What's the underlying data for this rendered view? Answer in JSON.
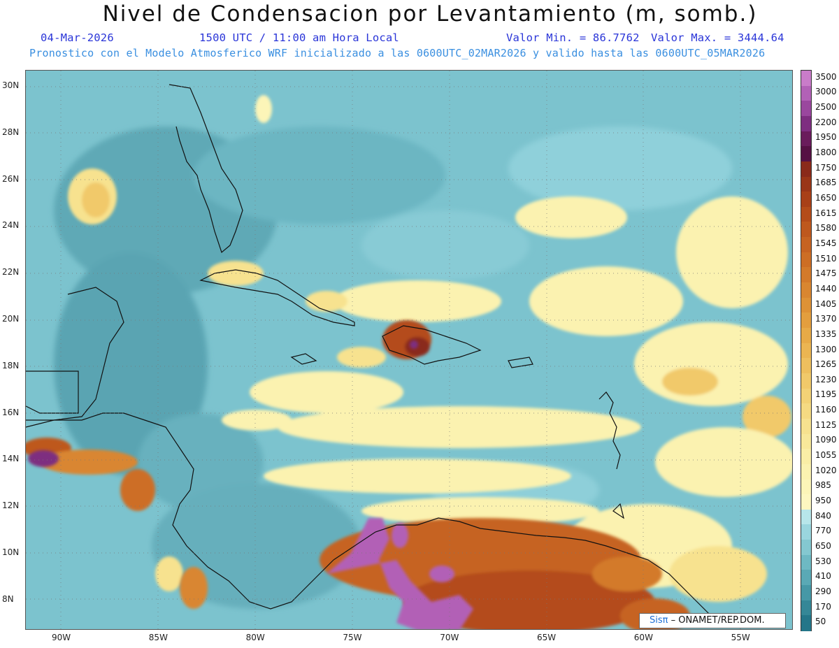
{
  "title": "Nivel de Condensacion por Levantamiento (m, somb.)",
  "date": "04-Mar-2026",
  "time": "1500 UTC / 11:00 am Hora Local",
  "valmin": "Valor Min. = 86.7762",
  "valmax": "Valor Max. = 3444.64",
  "forecast": "Pronostico con el Modelo Atmosferico WRF inicializado a las 0600UTC_02MAR2026 y valido hasta las  0600UTC_05MAR2026",
  "credit_logo": "Sisπ",
  "credit_text": "– ONAMET/REP.DOM.",
  "lat_labels": [
    "30N",
    "28N",
    "26N",
    "24N",
    "22N",
    "20N",
    "18N",
    "16N",
    "14N",
    "12N",
    "10N",
    "8N"
  ],
  "lon_labels": [
    "90W",
    "85W",
    "80W",
    "75W",
    "70W",
    "65W",
    "60W",
    "55W"
  ],
  "colorbar": {
    "labels": [
      "3500",
      "3000",
      "2500",
      "2200",
      "1950",
      "1800",
      "1750",
      "1685",
      "1650",
      "1615",
      "1580",
      "1545",
      "1510",
      "1475",
      "1440",
      "1405",
      "1370",
      "1335",
      "1300",
      "1265",
      "1230",
      "1195",
      "1160",
      "1125",
      "1090",
      "1055",
      "1020",
      "985",
      "950",
      "840",
      "770",
      "650",
      "530",
      "410",
      "290",
      "170",
      "50"
    ],
    "colors": [
      "#c97cc9",
      "#b261b6",
      "#9a479e",
      "#7e2e80",
      "#6a1c5c",
      "#561144",
      "#8a2a1a",
      "#9a3618",
      "#a84018",
      "#b44c1a",
      "#be581e",
      "#c66322",
      "#cd6e25",
      "#d37a2a",
      "#d98630",
      "#de9236",
      "#e39e3e",
      "#e7aa47",
      "#ebb552",
      "#eebf5e",
      "#f1c96a",
      "#f3d276",
      "#f5da82",
      "#f7e28f",
      "#f8e89a",
      "#faeea6",
      "#fbf2b0",
      "#fcf5b8",
      "#fdf7c0",
      "#b7e6ea",
      "#9ad6de",
      "#84c8d0",
      "#6eb9c3",
      "#5aa9b5",
      "#4698a6",
      "#358797",
      "#247689"
    ]
  }
}
